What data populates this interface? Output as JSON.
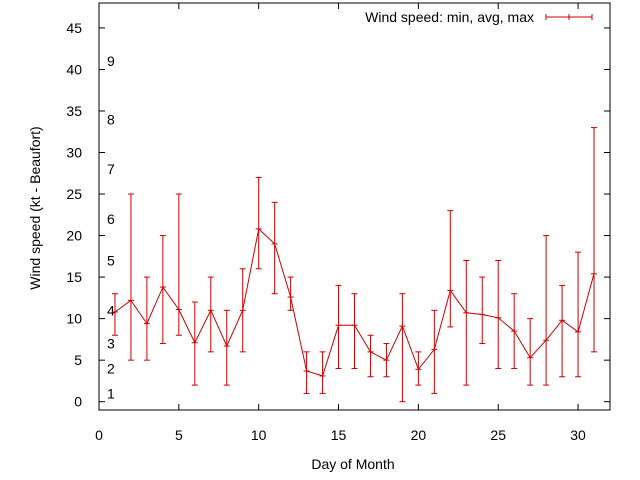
{
  "chart_data": {
    "type": "line",
    "xlabel": "Day of Month",
    "ylabel": "Wind speed (kt - Beaufort)",
    "xlim": [
      0,
      32
    ],
    "ylim": [
      -1,
      48
    ],
    "x_ticks": [
      0,
      5,
      10,
      15,
      20,
      25,
      30
    ],
    "y_ticks": [
      0,
      5,
      10,
      15,
      20,
      25,
      30,
      35,
      40,
      45
    ],
    "grid": false,
    "legend_position": "top-right",
    "beaufort_labels": [
      {
        "label": "1",
        "y": 1
      },
      {
        "label": "2",
        "y": 4
      },
      {
        "label": "3",
        "y": 7
      },
      {
        "label": "4",
        "y": 11
      },
      {
        "label": "5",
        "y": 17
      },
      {
        "label": "6",
        "y": 22
      },
      {
        "label": "7",
        "y": 28
      },
      {
        "label": "8",
        "y": 34
      },
      {
        "label": "9",
        "y": 41
      }
    ],
    "series": [
      {
        "name": "Wind speed: min, avg, max",
        "color": "#cc0000",
        "points": [
          {
            "x": 1,
            "min": 8,
            "avg": 10.8,
            "max": 13
          },
          {
            "x": 2,
            "min": 5,
            "avg": 12.2,
            "max": 25
          },
          {
            "x": 3,
            "min": 5,
            "avg": 9.4,
            "max": 15
          },
          {
            "x": 4,
            "min": 7,
            "avg": 13.8,
            "max": 20
          },
          {
            "x": 5,
            "min": 8,
            "avg": 11.1,
            "max": 25
          },
          {
            "x": 6,
            "min": 2,
            "avg": 7.1,
            "max": 12
          },
          {
            "x": 7,
            "min": 6,
            "avg": 11.0,
            "max": 15
          },
          {
            "x": 8,
            "min": 2,
            "avg": 6.7,
            "max": 11
          },
          {
            "x": 9,
            "min": 6,
            "avg": 11.0,
            "max": 16
          },
          {
            "x": 10,
            "min": 16,
            "avg": 20.8,
            "max": 27
          },
          {
            "x": 11,
            "min": 13,
            "avg": 19.0,
            "max": 24
          },
          {
            "x": 12,
            "min": 11,
            "avg": 12.6,
            "max": 15
          },
          {
            "x": 13,
            "min": 1,
            "avg": 3.7,
            "max": 6
          },
          {
            "x": 14,
            "min": 1,
            "avg": 3.1,
            "max": 6
          },
          {
            "x": 15,
            "min": 4,
            "avg": 9.2,
            "max": 14
          },
          {
            "x": 16,
            "min": 4,
            "avg": 9.2,
            "max": 13
          },
          {
            "x": 17,
            "min": 3,
            "avg": 6.0,
            "max": 8
          },
          {
            "x": 18,
            "min": 3,
            "avg": 5.0,
            "max": 7
          },
          {
            "x": 19,
            "min": 0,
            "avg": 9.1,
            "max": 13
          },
          {
            "x": 20,
            "min": 2,
            "avg": 3.9,
            "max": 6
          },
          {
            "x": 21,
            "min": 1,
            "avg": 6.3,
            "max": 11
          },
          {
            "x": 22,
            "min": 9,
            "avg": 13.4,
            "max": 23
          },
          {
            "x": 23,
            "min": 2,
            "avg": 10.7,
            "max": 17
          },
          {
            "x": 24,
            "min": 7,
            "avg": 10.5,
            "max": 15
          },
          {
            "x": 25,
            "min": 4,
            "avg": 10.1,
            "max": 17
          },
          {
            "x": 26,
            "min": 4,
            "avg": 8.5,
            "max": 13
          },
          {
            "x": 27,
            "min": 2,
            "avg": 5.3,
            "max": 10
          },
          {
            "x": 28,
            "min": 2,
            "avg": 7.4,
            "max": 20
          },
          {
            "x": 29,
            "min": 3,
            "avg": 9.8,
            "max": 14
          },
          {
            "x": 30,
            "min": 3,
            "avg": 8.4,
            "max": 18
          },
          {
            "x": 31,
            "min": 6,
            "avg": 15.4,
            "max": 33
          }
        ]
      }
    ]
  }
}
